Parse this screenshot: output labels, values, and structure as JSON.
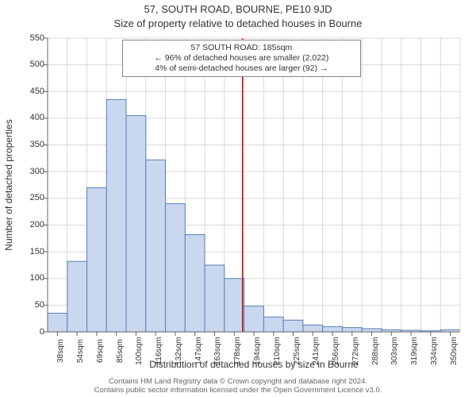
{
  "title_line1": "57, SOUTH ROAD, BOURNE, PE10 9JD",
  "title_line2": "Size of property relative to detached houses in Bourne",
  "chart": {
    "type": "histogram",
    "xlabel": "Distribution of detached houses by size in Bourne",
    "ylabel": "Number of detached properties",
    "ylim": [
      0,
      550
    ],
    "ytick_step": 50,
    "xtick_labels": [
      "38sqm",
      "54sqm",
      "69sqm",
      "85sqm",
      "100sqm",
      "116sqm",
      "132sqm",
      "147sqm",
      "163sqm",
      "178sqm",
      "194sqm",
      "210sqm",
      "225sqm",
      "241sqm",
      "256sqm",
      "272sqm",
      "288sqm",
      "303sqm",
      "319sqm",
      "334sqm",
      "350sqm"
    ],
    "bar_values": [
      35,
      132,
      270,
      435,
      405,
      322,
      240,
      182,
      125,
      100,
      48,
      28,
      22,
      13,
      10,
      8,
      6,
      4,
      3,
      2,
      4
    ],
    "bar_fill": "#c9d8ef",
    "bar_stroke": "#5b7fb5",
    "bar_stroke_width": 1,
    "grid_color": "#d9d9d9",
    "axis_color": "#666666",
    "tick_length": 5,
    "background_color": "#ffffff",
    "label_fontsize": 12,
    "tick_fontsize": 11,
    "xtick_fontsize": 10,
    "marker": {
      "value_sqm": 185,
      "color": "#cc0000",
      "width": 1.5
    }
  },
  "annotation": {
    "line1": "57 SOUTH ROAD: 185sqm",
    "line2": "← 96% of detached houses are smaller (2,022)",
    "line3": "4% of semi-detached houses are larger (92) →",
    "border_color": "#888888",
    "text_color": "#333333",
    "fontsize": 10.5
  },
  "footer": {
    "line1": "Contains HM Land Registry data © Crown copyright and database right 2024.",
    "line2": "Contains public sector information licensed under the Open Government Licence v3.0."
  }
}
